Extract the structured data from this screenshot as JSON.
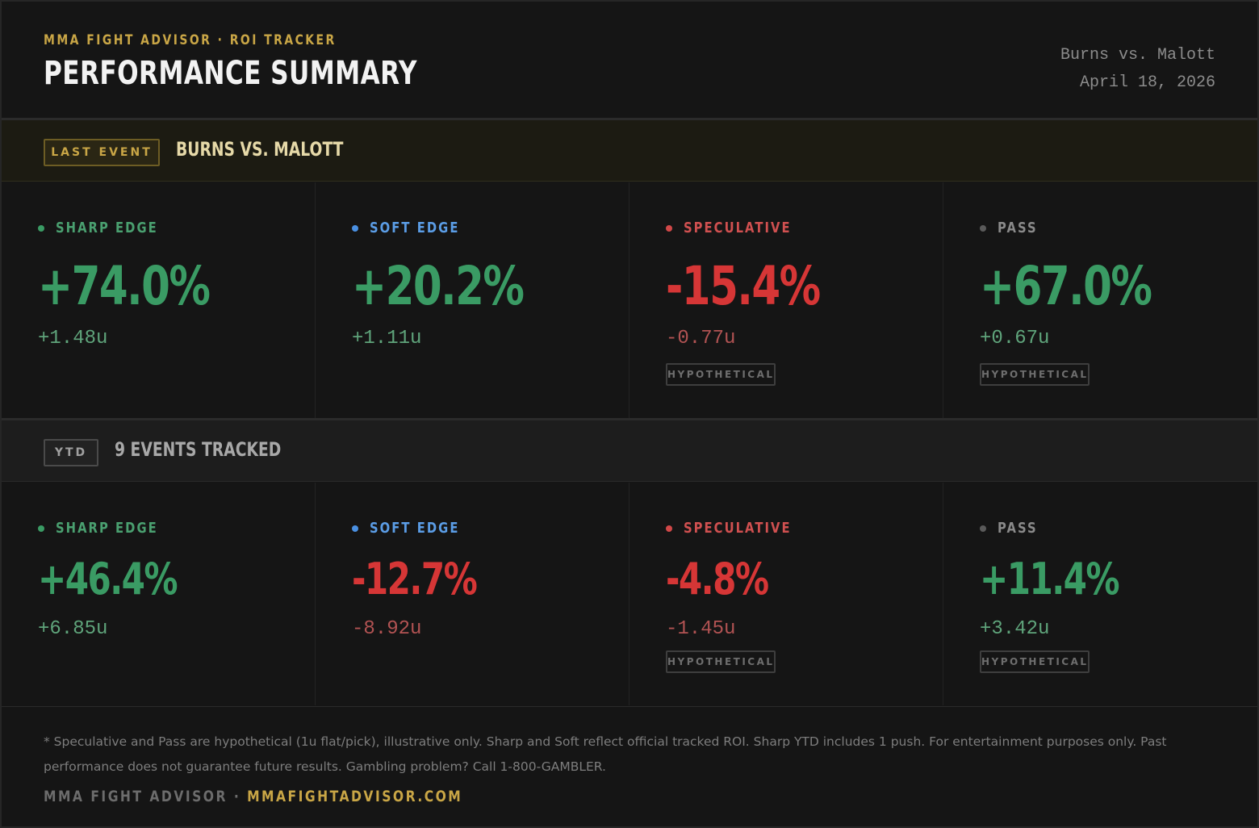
{
  "header": {
    "eyebrow": "MMA FIGHT ADVISOR · ROI TRACKER",
    "title": "PERFORMANCE SUMMARY",
    "event_name": "Burns vs. Malott",
    "event_date": "April 18, 2026"
  },
  "last_event": {
    "tag": "LAST EVENT",
    "label": "BURNS VS. MALOTT",
    "cells": [
      {
        "category": "SHARP EDGE",
        "pct": "+74.0%",
        "units": "+1.48u",
        "hypothetical": ""
      },
      {
        "category": "SOFT EDGE",
        "pct": "+20.2%",
        "units": "+1.11u",
        "hypothetical": ""
      },
      {
        "category": "SPECULATIVE",
        "pct": "-15.4%",
        "units": "-0.77u",
        "hypothetical": "HYPOTHETICAL"
      },
      {
        "category": "PASS",
        "pct": "+67.0%",
        "units": "+0.67u",
        "hypothetical": "HYPOTHETICAL"
      }
    ]
  },
  "ytd": {
    "tag": "YTD",
    "label": "9 EVENTS TRACKED",
    "cells": [
      {
        "category": "SHARP EDGE",
        "pct": "+46.4%",
        "units": "+6.85u",
        "hypothetical": ""
      },
      {
        "category": "SOFT EDGE",
        "pct": "-12.7%",
        "units": "-8.92u",
        "hypothetical": ""
      },
      {
        "category": "SPECULATIVE",
        "pct": "-4.8%",
        "units": "-1.45u",
        "hypothetical": "HYPOTHETICAL"
      },
      {
        "category": "PASS",
        "pct": "+11.4%",
        "units": "+3.42u",
        "hypothetical": "HYPOTHETICAL"
      }
    ]
  },
  "colors": {
    "sharp": "#3a9b64",
    "soft": "#4a90e2",
    "speculative": "#d14848",
    "pass": "#5a5a5a",
    "sharp_label": "#4aa070",
    "soft_label": "#5b9de6",
    "speculative_label": "#d05050",
    "pass_label": "#8a8a8a",
    "accent_gold": "#c9a646"
  },
  "footer": {
    "disclaimer": "* Speculative and Pass are hypothetical (1u flat/pick), illustrative only. Sharp and Soft reflect official tracked ROI. Sharp YTD includes 1 push. For entertainment purposes only. Past performance does not guarantee future results. Gambling problem? Call 1-800-GAMBLER.",
    "brand_left": "MMA FIGHT ADVISOR · ",
    "brand_site": "MMAFIGHTADVISOR.COM"
  }
}
